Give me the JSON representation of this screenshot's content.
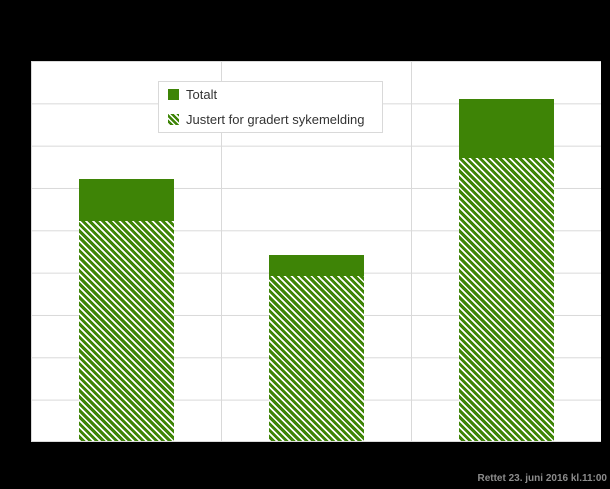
{
  "colors": {
    "page_bg": "#000000",
    "plot_bg": "#ffffff",
    "gridline": "#d9d9d9",
    "bar_green": "#3e8406",
    "legend_text": "#333333",
    "footer_text": "#8c8c8c"
  },
  "legend": {
    "items": [
      {
        "label": "Totalt",
        "swatch_icon": "solid-green-square-icon"
      },
      {
        "label": "Justert for gradert sykemelding",
        "swatch_icon": "hatched-green-square-icon"
      }
    ]
  },
  "footer": {
    "revision_note": "Rettet 23. juni 2016 kl.11:00"
  },
  "chart_data": {
    "type": "bar",
    "categories": [
      "",
      "",
      ""
    ],
    "series": [
      {
        "name": "Totalt",
        "style": "solid",
        "values": [
          6.2,
          4.4,
          8.1
        ]
      },
      {
        "name": "Justert for gradert sykemelding",
        "style": "hatched-overlay",
        "values": [
          5.2,
          3.9,
          6.7
        ]
      }
    ],
    "title": "",
    "xlabel": "",
    "ylabel": "",
    "ylim": [
      0,
      9
    ],
    "y_gridline_step": 1,
    "grid": true,
    "legend_position": "top-center-inside",
    "note": "Chart title, axis tick labels and category labels are not visible (obscured by black background); hatched segment overlays the lower part of each total bar."
  }
}
